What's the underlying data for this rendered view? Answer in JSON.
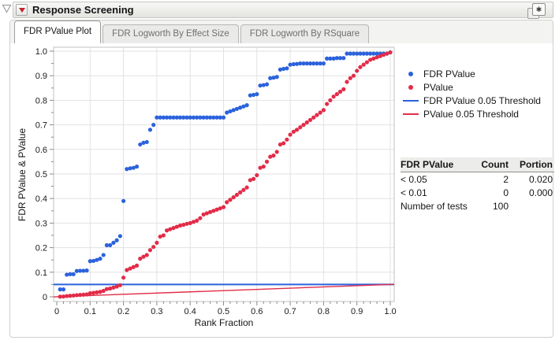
{
  "window": {
    "title": "Response Screening",
    "disclosure_icon": "open-disclosure-triangle",
    "menu_icon": "red-triangle-menu",
    "corner_icon": "new-window-shortcut"
  },
  "tabs": [
    {
      "label": "FDR PValue Plot",
      "active": true
    },
    {
      "label": "FDR Logworth By Effect Size",
      "active": false
    },
    {
      "label": "FDR Logworth By RSquare",
      "active": false
    }
  ],
  "legend": {
    "items": [
      {
        "label": "FDR PValue",
        "marker": "dot",
        "color": "#2B62DC"
      },
      {
        "label": "PValue",
        "marker": "dot",
        "color": "#E22C48"
      },
      {
        "label": "FDR PValue 0.05 Threshold",
        "marker": "line",
        "color": "#2B62DC"
      },
      {
        "label": "PValue 0.05 Threshold",
        "marker": "line",
        "color": "#E22C48"
      }
    ]
  },
  "stats_table": {
    "headers": [
      "FDR PValue",
      "Count",
      "Portion"
    ],
    "rows": [
      [
        "< 0.05",
        "2",
        "0.020"
      ],
      [
        "< 0.01",
        "0",
        "0.000"
      ],
      [
        "Number of tests",
        "100",
        ""
      ]
    ]
  },
  "colors": {
    "fdr_blue": "#2B62DC",
    "pvalue_red": "#E22C48",
    "gridline": "#e2e2e2",
    "frame": "#c2c2c2",
    "tick": "#8a8a8a"
  },
  "chart_data": {
    "type": "scatter",
    "title": "",
    "xlabel": "Rank Fraction",
    "ylabel": "FDR PValue & PValue",
    "xlim": [
      0,
      1
    ],
    "ylim": [
      0,
      1
    ],
    "grid": true,
    "legend_position": "right",
    "x_tick_labels": [
      "0",
      "0.1",
      "0.2",
      "0.3",
      "0.4",
      "0.5",
      "0.6",
      "0.7",
      "0.8",
      "0.9",
      "1.0"
    ],
    "y_tick_labels": [
      "0",
      "0.1",
      "0.2",
      "0.3",
      "0.4",
      "0.5",
      "0.6",
      "0.7",
      "0.8",
      "0.9",
      "1.0"
    ],
    "x_note": "x = rank fraction, 100 tests, x[i] = (i+1)/100",
    "x": [
      0.01,
      0.02,
      0.03,
      0.04,
      0.05,
      0.06,
      0.07,
      0.08,
      0.09,
      0.1,
      0.11,
      0.12,
      0.13,
      0.14,
      0.15,
      0.16,
      0.17,
      0.18,
      0.19,
      0.2,
      0.21,
      0.22,
      0.23,
      0.24,
      0.25,
      0.26,
      0.27,
      0.28,
      0.29,
      0.3,
      0.31,
      0.32,
      0.33,
      0.34,
      0.35,
      0.36,
      0.37,
      0.38,
      0.39,
      0.4,
      0.41,
      0.42,
      0.43,
      0.44,
      0.45,
      0.46,
      0.47,
      0.48,
      0.49,
      0.5,
      0.51,
      0.52,
      0.53,
      0.54,
      0.55,
      0.56,
      0.57,
      0.58,
      0.59,
      0.6,
      0.61,
      0.62,
      0.63,
      0.64,
      0.65,
      0.66,
      0.67,
      0.68,
      0.69,
      0.7,
      0.71,
      0.72,
      0.73,
      0.74,
      0.75,
      0.76,
      0.77,
      0.78,
      0.79,
      0.8,
      0.81,
      0.82,
      0.83,
      0.84,
      0.85,
      0.86,
      0.87,
      0.88,
      0.89,
      0.9,
      0.91,
      0.92,
      0.93,
      0.94,
      0.95,
      0.96,
      0.97,
      0.98,
      0.99,
      1.0
    ],
    "series": [
      {
        "name": "FDR PValue",
        "marker": "dot",
        "color": "#2B62DC",
        "y": [
          0.03,
          0.03,
          0.09,
          0.092,
          0.092,
          0.105,
          0.106,
          0.106,
          0.107,
          0.145,
          0.146,
          0.15,
          0.155,
          0.17,
          0.21,
          0.21,
          0.22,
          0.23,
          0.247,
          0.39,
          0.52,
          0.523,
          0.525,
          0.53,
          0.62,
          0.627,
          0.63,
          0.68,
          0.7,
          0.73,
          0.73,
          0.73,
          0.73,
          0.73,
          0.73,
          0.73,
          0.73,
          0.73,
          0.73,
          0.73,
          0.73,
          0.73,
          0.73,
          0.73,
          0.73,
          0.73,
          0.73,
          0.73,
          0.73,
          0.73,
          0.75,
          0.755,
          0.76,
          0.765,
          0.77,
          0.775,
          0.78,
          0.82,
          0.822,
          0.825,
          0.86,
          0.862,
          0.865,
          0.89,
          0.892,
          0.895,
          0.925,
          0.928,
          0.93,
          0.945,
          0.947,
          0.948,
          0.95,
          0.95,
          0.95,
          0.95,
          0.95,
          0.95,
          0.95,
          0.95,
          0.97,
          0.97,
          0.97,
          0.972,
          0.972,
          0.972,
          0.99,
          0.99,
          0.99,
          0.99,
          0.99,
          0.99,
          0.99,
          0.99,
          0.99,
          0.99,
          0.99,
          0.99,
          0.99,
          0.995
        ]
      },
      {
        "name": "PValue",
        "marker": "dot",
        "color": "#E22C48",
        "y": [
          0.0005,
          0.001,
          0.003,
          0.004,
          0.005,
          0.0065,
          0.0075,
          0.0085,
          0.0095,
          0.0145,
          0.016,
          0.018,
          0.02,
          0.024,
          0.0315,
          0.0336,
          0.0374,
          0.0414,
          0.047,
          0.078,
          0.109,
          0.115,
          0.121,
          0.127,
          0.155,
          0.163,
          0.17,
          0.19,
          0.203,
          0.22,
          0.245,
          0.25,
          0.27,
          0.275,
          0.28,
          0.285,
          0.29,
          0.293,
          0.297,
          0.3,
          0.305,
          0.31,
          0.32,
          0.335,
          0.34,
          0.345,
          0.35,
          0.355,
          0.36,
          0.365,
          0.385,
          0.395,
          0.405,
          0.415,
          0.425,
          0.435,
          0.445,
          0.475,
          0.48,
          0.495,
          0.525,
          0.53,
          0.55,
          0.57,
          0.575,
          0.59,
          0.62,
          0.625,
          0.64,
          0.66,
          0.672,
          0.68,
          0.69,
          0.7,
          0.71,
          0.72,
          0.73,
          0.74,
          0.75,
          0.76,
          0.785,
          0.8,
          0.815,
          0.825,
          0.835,
          0.845,
          0.875,
          0.89,
          0.9,
          0.92,
          0.935,
          0.945,
          0.955,
          0.965,
          0.97,
          0.975,
          0.98,
          0.985,
          0.99,
          0.995
        ]
      }
    ],
    "thresholds": [
      {
        "name": "FDR PValue 0.05 Threshold",
        "type": "hline",
        "y": 0.05,
        "color": "#2B62DC"
      },
      {
        "name": "PValue 0.05 Threshold",
        "type": "line",
        "from": [
          0,
          0
        ],
        "to": [
          1,
          0.05
        ],
        "color": "#E22C48"
      }
    ]
  }
}
